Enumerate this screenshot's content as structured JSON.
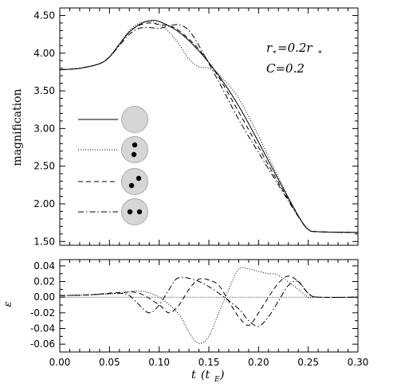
{
  "chart_data": [
    {
      "type": "line",
      "panel": "top",
      "ylabel": "magnification",
      "xlim": [
        0.0,
        0.3
      ],
      "ylim": [
        1.45,
        4.6
      ],
      "yticks": [
        "1.50",
        "2.00",
        "2.50",
        "3.00",
        "3.50",
        "4.00",
        "4.50"
      ],
      "annotation": {
        "line1_main": "r",
        "line1_sub1": "*",
        "line1_eq": "=0.2r",
        "line1_sub2": "*",
        "line2": "C=0.2"
      },
      "legend": [
        {
          "style": "solid",
          "spots": 0
        },
        {
          "style": "dotted",
          "spots": 2
        },
        {
          "style": "dashed",
          "spots": 2
        },
        {
          "style": "dash-dot",
          "spots": 2
        }
      ],
      "series": [
        {
          "style": "solid",
          "x": [
            0.0,
            0.02,
            0.04,
            0.05,
            0.06,
            0.07,
            0.08,
            0.09,
            0.1,
            0.12,
            0.14,
            0.16,
            0.18,
            0.2,
            0.22,
            0.24,
            0.25,
            0.26,
            0.3
          ],
          "y": [
            3.78,
            3.8,
            3.86,
            3.95,
            4.12,
            4.28,
            4.38,
            4.43,
            4.42,
            4.28,
            4.03,
            3.7,
            3.3,
            2.82,
            2.32,
            1.84,
            1.66,
            1.63,
            1.62
          ]
        },
        {
          "style": "dotted",
          "x": [
            0.0,
            0.02,
            0.04,
            0.05,
            0.06,
            0.07,
            0.08,
            0.09,
            0.1,
            0.11,
            0.12,
            0.13,
            0.14,
            0.15,
            0.16,
            0.18,
            0.2,
            0.22,
            0.24,
            0.25,
            0.26,
            0.3
          ],
          "y": [
            3.78,
            3.8,
            3.86,
            3.95,
            4.12,
            4.3,
            4.4,
            4.42,
            4.38,
            4.28,
            4.12,
            3.92,
            3.82,
            3.8,
            3.72,
            3.4,
            2.9,
            2.35,
            1.84,
            1.66,
            1.63,
            1.62
          ]
        },
        {
          "style": "dashed",
          "x": [
            0.0,
            0.02,
            0.04,
            0.05,
            0.06,
            0.07,
            0.08,
            0.09,
            0.1,
            0.11,
            0.12,
            0.14,
            0.16,
            0.18,
            0.2,
            0.22,
            0.24,
            0.25,
            0.26,
            0.3
          ],
          "y": [
            3.78,
            3.8,
            3.86,
            3.95,
            4.12,
            4.28,
            4.37,
            4.4,
            4.38,
            4.36,
            4.3,
            4.05,
            3.68,
            3.22,
            2.75,
            2.28,
            1.84,
            1.66,
            1.63,
            1.62
          ]
        },
        {
          "style": "dash-dot",
          "x": [
            0.0,
            0.02,
            0.04,
            0.05,
            0.06,
            0.07,
            0.08,
            0.09,
            0.1,
            0.11,
            0.12,
            0.13,
            0.14,
            0.16,
            0.18,
            0.2,
            0.22,
            0.24,
            0.25,
            0.26,
            0.3
          ],
          "y": [
            3.78,
            3.8,
            3.86,
            3.95,
            4.1,
            4.25,
            4.33,
            4.34,
            4.33,
            4.36,
            4.38,
            4.3,
            4.1,
            3.62,
            3.12,
            2.68,
            2.25,
            1.83,
            1.66,
            1.63,
            1.62
          ]
        }
      ]
    },
    {
      "type": "line",
      "panel": "bottom",
      "xlabel_main": "t",
      "xlabel_open": "(t",
      "xlabel_sub": "E",
      "xlabel_close": ")",
      "ylabel": "ε",
      "xlim": [
        0.0,
        0.3
      ],
      "ylim": [
        -0.07,
        0.048
      ],
      "xticks": [
        "0.00",
        "0.05",
        "0.10",
        "0.15",
        "0.20",
        "0.25",
        "0.30"
      ],
      "yticks": [
        "-0.06",
        "-0.04",
        "-0.02",
        "0.00",
        "0.02",
        "0.04"
      ],
      "series": [
        {
          "style": "dotted",
          "x": [
            0.0,
            0.03,
            0.06,
            0.08,
            0.1,
            0.12,
            0.13,
            0.14,
            0.15,
            0.16,
            0.17,
            0.18,
            0.19,
            0.2,
            0.21,
            0.22,
            0.24,
            0.25,
            0.26,
            0.3
          ],
          "y": [
            0.002,
            0.003,
            0.005,
            0.008,
            0.0,
            -0.022,
            -0.045,
            -0.059,
            -0.05,
            -0.02,
            0.01,
            0.036,
            0.036,
            0.033,
            0.03,
            0.028,
            0.01,
            0.0,
            0.0,
            0.0
          ]
        },
        {
          "style": "dashed",
          "x": [
            0.0,
            0.03,
            0.06,
            0.08,
            0.1,
            0.11,
            0.12,
            0.13,
            0.14,
            0.15,
            0.16,
            0.17,
            0.18,
            0.19,
            0.2,
            0.21,
            0.22,
            0.23,
            0.24,
            0.25,
            0.26,
            0.3
          ],
          "y": [
            0.002,
            0.003,
            0.006,
            0.005,
            -0.01,
            -0.02,
            -0.01,
            0.01,
            0.023,
            0.022,
            0.015,
            -0.005,
            -0.025,
            -0.036,
            -0.02,
            0.0,
            0.018,
            0.027,
            0.02,
            0.005,
            0.0,
            0.0
          ]
        },
        {
          "style": "dash-dot",
          "x": [
            0.0,
            0.03,
            0.06,
            0.07,
            0.08,
            0.09,
            0.1,
            0.11,
            0.12,
            0.14,
            0.16,
            0.18,
            0.19,
            0.2,
            0.21,
            0.22,
            0.23,
            0.24,
            0.25,
            0.26,
            0.3
          ],
          "y": [
            0.002,
            0.003,
            0.005,
            0.002,
            -0.01,
            -0.02,
            -0.01,
            0.01,
            0.025,
            0.02,
            0.005,
            -0.015,
            -0.03,
            -0.037,
            -0.025,
            -0.005,
            0.015,
            0.02,
            0.005,
            0.0,
            0.0
          ]
        }
      ]
    }
  ]
}
